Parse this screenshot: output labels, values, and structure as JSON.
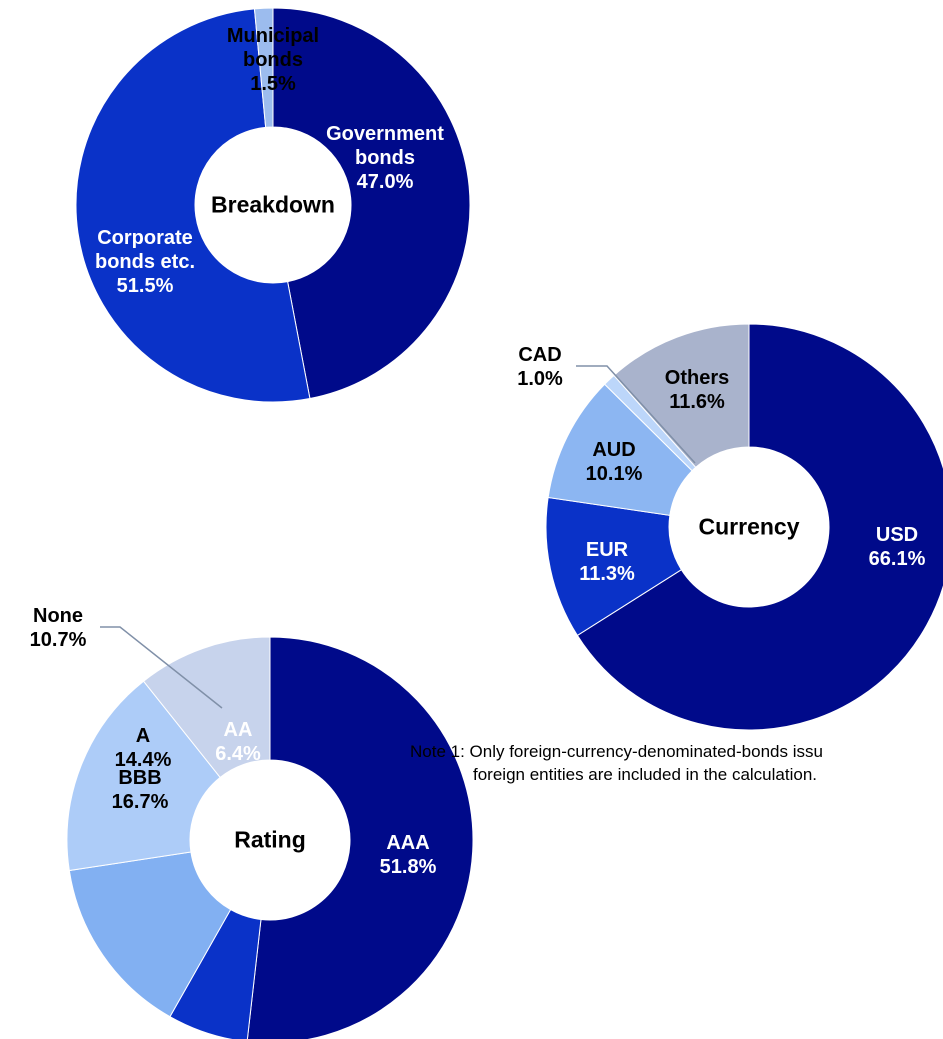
{
  "chart_data": [
    {
      "type": "pie",
      "title": "Breakdown",
      "categories": [
        "Government bonds",
        "Corporate bonds etc.",
        "Municipal bonds"
      ],
      "values": [
        47.0,
        51.5,
        1.5
      ],
      "value_labels": [
        "47.0%",
        "51.5%",
        "1.5%"
      ],
      "colors": [
        "#000a8a",
        "#0a32c8",
        "#9cbcee"
      ]
    },
    {
      "type": "pie",
      "title": "Currency",
      "categories": [
        "USD",
        "EUR",
        "AUD",
        "CAD",
        "Others"
      ],
      "values": [
        66.1,
        11.3,
        10.1,
        1.0,
        11.6
      ],
      "value_labels": [
        "66.1%",
        "11.3%",
        "10.1%",
        "1.0%",
        "11.6%"
      ],
      "colors": [
        "#000a8a",
        "#0a32c8",
        "#8cb6f2",
        "#bcd6fa",
        "#a9b3cc"
      ]
    },
    {
      "type": "pie",
      "title": "Rating",
      "categories": [
        "AAA",
        "AA",
        "A",
        "BBB",
        "None"
      ],
      "values": [
        51.8,
        6.4,
        14.4,
        16.7,
        10.7
      ],
      "value_labels": [
        "51.8%",
        "6.4%",
        "14.4%",
        "16.7%",
        "10.7%"
      ],
      "colors": [
        "#000a8a",
        "#0a32c8",
        "#82b0f2",
        "#adccf8",
        "#c7d3ec"
      ]
    }
  ],
  "notes": [
    "Note 1: Only foreign-currency-denominated-bonds issu",
    "foreign entities are included in the calculation."
  ]
}
